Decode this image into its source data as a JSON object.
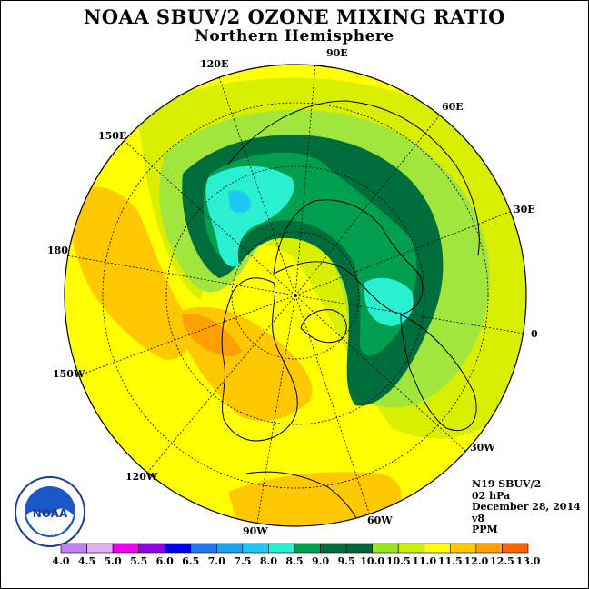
{
  "title": "NOAA SBUV/2 OZONE MIXING RATIO",
  "subtitle": "Northern Hemisphere",
  "longitude_labels": [
    {
      "text": "90E",
      "name": "lon-label-90e"
    },
    {
      "text": "60E",
      "name": "lon-label-60e"
    },
    {
      "text": "30E",
      "name": "lon-label-30e"
    },
    {
      "text": "0",
      "name": "lon-label-0"
    },
    {
      "text": "30W",
      "name": "lon-label-30w"
    },
    {
      "text": "60W",
      "name": "lon-label-60w"
    },
    {
      "text": "90W",
      "name": "lon-label-90w"
    },
    {
      "text": "120W",
      "name": "lon-label-120w"
    },
    {
      "text": "150W",
      "name": "lon-label-150w"
    },
    {
      "text": "180",
      "name": "lon-label-180"
    },
    {
      "text": "150E",
      "name": "lon-label-150e"
    },
    {
      "text": "120E",
      "name": "lon-label-120e"
    }
  ],
  "info": {
    "satellite": "N19 SBUV/2",
    "level": "02 hPa",
    "date": "December 28, 2014",
    "version": "v8",
    "units": "PPM"
  },
  "logo": {
    "text": "NOAA",
    "ring_text": "NATIONAL OCEANIC AND ATMOSPHERIC ADMINISTRATION · U.S. DEPARTMENT OF COMMERCE"
  },
  "color_scale": {
    "ticks": [
      "4.0",
      "4.5",
      "5.0",
      "5.5",
      "6.0",
      "6.5",
      "7.0",
      "7.5",
      "8.0",
      "8.5",
      "9.0",
      "9.5",
      "10.0",
      "10.5",
      "11.0",
      "11.5",
      "12.0",
      "12.5",
      "13.0"
    ],
    "colors": [
      "#b07de3",
      "#e3a8f0",
      "#f000f0",
      "#a000e6",
      "#0000e6",
      "#0060f0",
      "#0096f0",
      "#00c8f8",
      "#00f0e0",
      "#00a050",
      "#008040",
      "#00643c",
      "#a0e63c",
      "#d8f000",
      "#ffff00",
      "#ffc800",
      "#ffa000",
      "#ff6400",
      "#ff0000",
      "#a05028"
    ],
    "segment_colors": [
      "#c080f0",
      "#e0b0f0",
      "#f000f0",
      "#9000e0",
      "#0000f0",
      "#1e78f0",
      "#1ea0f0",
      "#1ec8f0",
      "#28f0d0",
      "#00a050",
      "#006e3c",
      "#00643c",
      "#96e61e",
      "#c8f000",
      "#ffff00",
      "#ffc800",
      "#ffa000",
      "#ff6400",
      "#ff0000",
      "#b05a28"
    ]
  }
}
